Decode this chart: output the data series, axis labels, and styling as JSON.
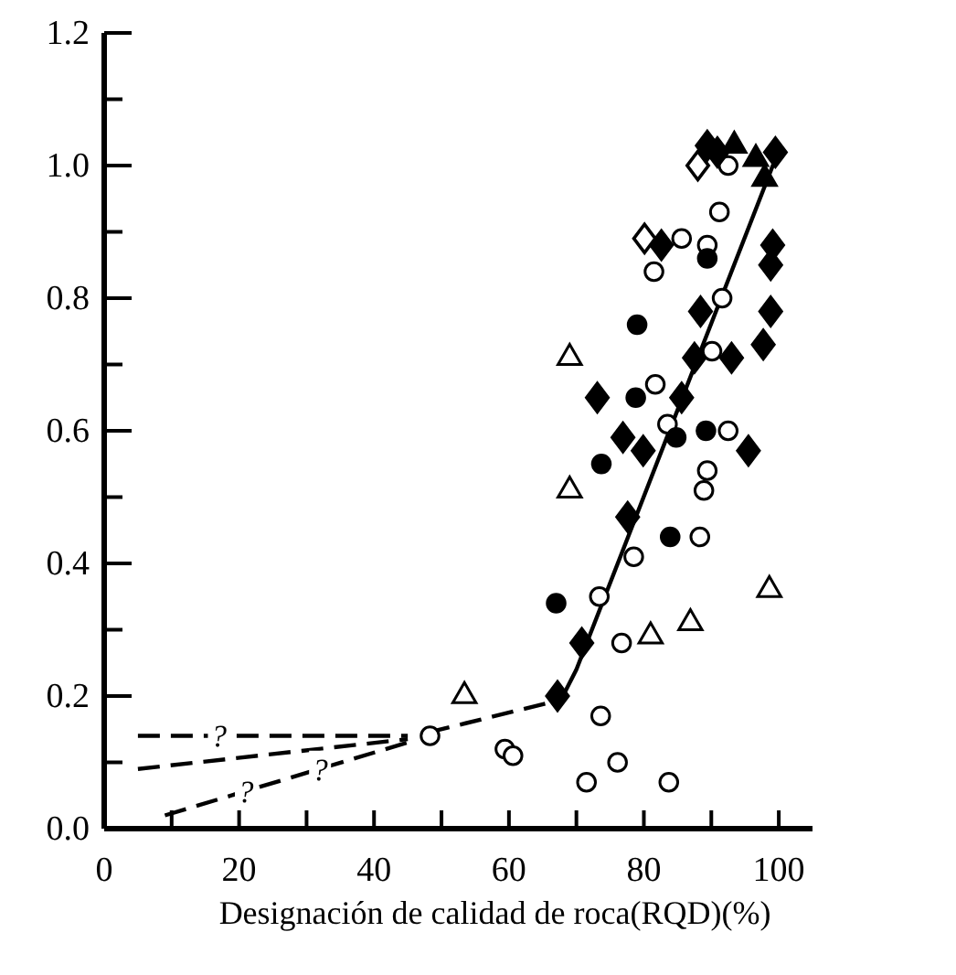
{
  "chart_data": {
    "type": "scatter",
    "xlabel": "Designación de calidad de roca(RQD)(%)",
    "xlim": [
      0,
      105
    ],
    "xticks": [
      0,
      {
        "value": 10,
        "label": null
      },
      20,
      {
        "value": 30,
        "label": null
      },
      40,
      {
        "value": 50,
        "label": null
      },
      60,
      {
        "value": 70,
        "label": null
      },
      80,
      {
        "value": 90,
        "label": null
      },
      100
    ],
    "ylim": [
      0,
      1.2
    ],
    "yticks": [
      {
        "value": 0,
        "label": "0.0"
      },
      {
        "value": 0.1,
        "label": null
      },
      0.2,
      {
        "value": 0.3,
        "label": null
      },
      0.4,
      {
        "value": 0.5,
        "label": null
      },
      0.6,
      {
        "value": 0.7,
        "label": null
      },
      0.8,
      {
        "value": 0.9,
        "label": null
      },
      {
        "value": 1.0,
        "label": "1.0"
      },
      {
        "value": 1.1,
        "label": null
      },
      1.2
    ],
    "annotations": [
      {
        "text": "?",
        "x": 17,
        "y": 0.14
      },
      {
        "text": "?",
        "x": 21,
        "y": 0.057
      },
      {
        "text": "?",
        "x": 32,
        "y": 0.09
      }
    ],
    "series": [
      {
        "marker": "circle",
        "color": "#ffffff",
        "x": [
          48.3,
          59.4,
          60.6,
          73.6,
          71.5,
          76.1,
          83.7,
          76.7,
          73.4,
          78.5,
          83.5,
          81.7,
          81.5,
          85.6,
          89.4,
          91.2,
          91.6,
          90.1,
          92.5,
          89.4,
          88.9,
          88.3,
          92.5
        ],
        "values": [
          0.14,
          0.12,
          0.11,
          0.17,
          0.07,
          0.1,
          0.07,
          0.28,
          0.35,
          0.41,
          0.61,
          0.67,
          0.84,
          0.89,
          0.88,
          0.93,
          0.8,
          0.72,
          0.6,
          0.54,
          0.51,
          0.44,
          1.0
        ]
      },
      {
        "marker": "circle",
        "color": "#000000",
        "x": [
          67,
          73.7,
          79,
          78.8,
          84.8,
          89.2,
          83.9,
          89.4
        ],
        "values": [
          0.34,
          0.55,
          0.76,
          0.65,
          0.59,
          0.6,
          0.44,
          0.86
        ]
      },
      {
        "marker": "diamond",
        "color": "#000000",
        "x": [
          67.2,
          70.8,
          73.1,
          76.9,
          79.9,
          77.6,
          85.6,
          87.5,
          88.4,
          93,
          95.5,
          97.7,
          98.8,
          98.8,
          99.1,
          82.6,
          89.4,
          90.9,
          99.5
        ],
        "values": [
          0.2,
          0.28,
          0.65,
          0.59,
          0.57,
          0.47,
          0.65,
          0.71,
          0.78,
          0.71,
          0.57,
          0.73,
          0.78,
          0.85,
          0.88,
          0.88,
          1.03,
          1.02,
          1.02
        ]
      },
      {
        "marker": "diamond",
        "color": "#ffffff",
        "x": [
          80.1,
          88
        ],
        "values": [
          0.89,
          1.0
        ]
      },
      {
        "marker": "triangle",
        "color": "#ffffff",
        "x": [
          53.4,
          69,
          69,
          81,
          86.9,
          98.6
        ],
        "values": [
          0.2,
          0.71,
          0.51,
          0.29,
          0.31,
          0.36
        ]
      },
      {
        "marker": "triangle",
        "color": "#000000",
        "x": [
          93.4,
          96.6,
          97.9
        ],
        "values": [
          1.03,
          1.01,
          0.98
        ]
      },
      {
        "type": "line",
        "line_style": "solid",
        "color": "#000000",
        "x": [
          68,
          70,
          99.5
        ],
        "values": [
          0.2,
          0.24,
          1.01
        ]
      },
      {
        "type": "line",
        "line_style": "dashed",
        "color": "#000000",
        "x": [
          48,
          68
        ],
        "values": [
          0.145,
          0.195
        ]
      },
      {
        "type": "line",
        "line_style": "dashed",
        "color": "#000000",
        "x": [
          5,
          45
        ],
        "values": [
          0.14,
          0.14
        ]
      },
      {
        "type": "line",
        "line_style": "dashed",
        "color": "#000000",
        "x": [
          5,
          45
        ],
        "values": [
          0.09,
          0.135
        ]
      },
      {
        "type": "line",
        "line_style": "dashed",
        "color": "#000000",
        "x": [
          9,
          45
        ],
        "values": [
          0.02,
          0.13
        ]
      }
    ]
  }
}
